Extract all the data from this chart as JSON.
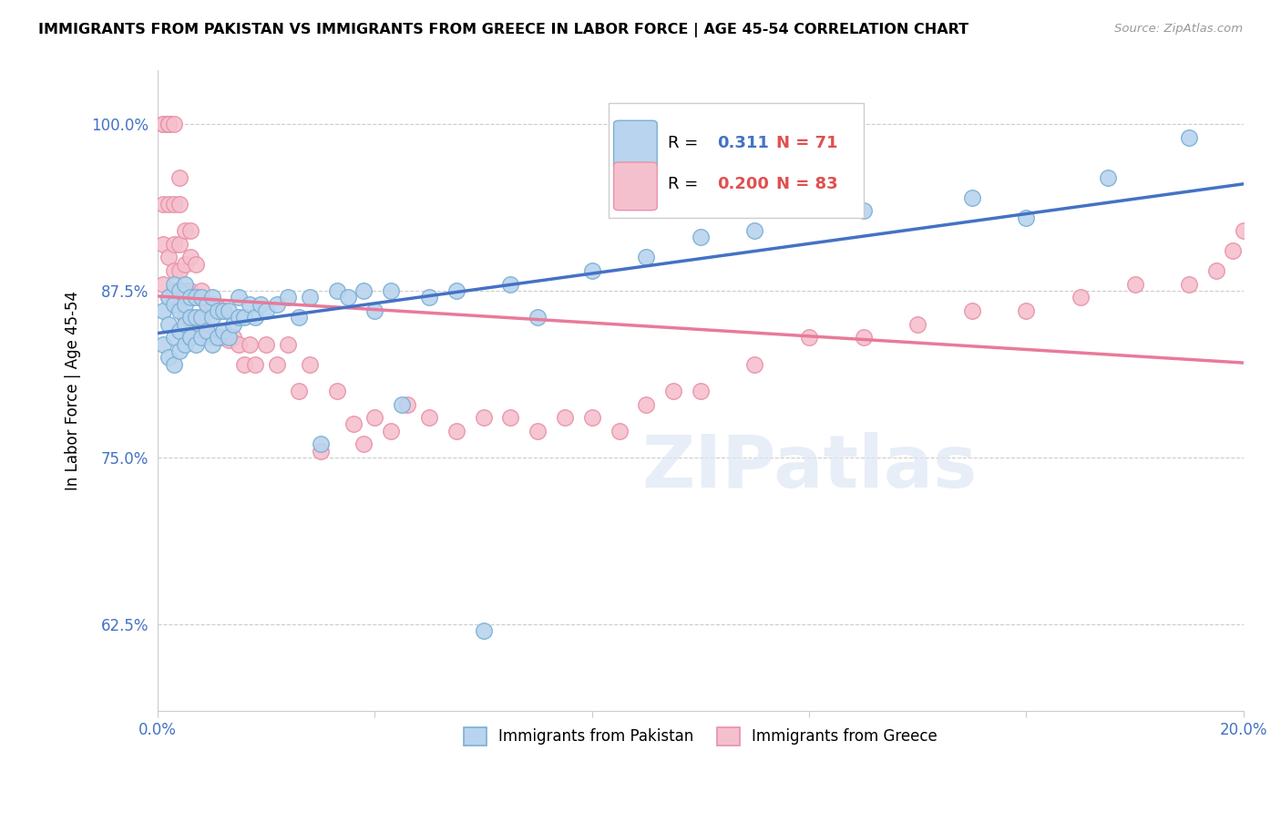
{
  "title": "IMMIGRANTS FROM PAKISTAN VS IMMIGRANTS FROM GREECE IN LABOR FORCE | AGE 45-54 CORRELATION CHART",
  "source": "Source: ZipAtlas.com",
  "ylabel": "In Labor Force | Age 45-54",
  "xlim": [
    0.0,
    0.2
  ],
  "ylim": [
    0.56,
    1.04
  ],
  "xticks": [
    0.0,
    0.04,
    0.08,
    0.12,
    0.16,
    0.2
  ],
  "xtick_labels": [
    "0.0%",
    "",
    "",
    "",
    "",
    "20.0%"
  ],
  "ytick_labels": [
    "62.5%",
    "75.0%",
    "87.5%",
    "100.0%"
  ],
  "yticks": [
    0.625,
    0.75,
    0.875,
    1.0
  ],
  "R_pakistan": 0.311,
  "N_pakistan": 71,
  "R_greece": 0.2,
  "N_greece": 83,
  "pakistan_color": "#b8d4ee",
  "pakistan_edge": "#7aafd4",
  "greece_color": "#f5c0ce",
  "greece_edge": "#e891a8",
  "pakistan_line_color": "#4472c4",
  "greece_line_color": "#e87a9a",
  "watermark": "ZIPatlas",
  "pakistan_x": [
    0.001,
    0.001,
    0.002,
    0.002,
    0.002,
    0.003,
    0.003,
    0.003,
    0.003,
    0.004,
    0.004,
    0.004,
    0.004,
    0.005,
    0.005,
    0.005,
    0.005,
    0.006,
    0.006,
    0.006,
    0.006,
    0.007,
    0.007,
    0.007,
    0.008,
    0.008,
    0.008,
    0.009,
    0.009,
    0.01,
    0.01,
    0.01,
    0.011,
    0.011,
    0.012,
    0.012,
    0.013,
    0.013,
    0.014,
    0.015,
    0.015,
    0.016,
    0.017,
    0.018,
    0.019,
    0.02,
    0.022,
    0.024,
    0.026,
    0.028,
    0.03,
    0.033,
    0.035,
    0.038,
    0.04,
    0.043,
    0.045,
    0.05,
    0.055,
    0.06,
    0.065,
    0.07,
    0.08,
    0.09,
    0.1,
    0.11,
    0.13,
    0.15,
    0.16,
    0.175,
    0.19
  ],
  "pakistan_y": [
    0.835,
    0.86,
    0.825,
    0.85,
    0.87,
    0.82,
    0.84,
    0.865,
    0.88,
    0.83,
    0.845,
    0.86,
    0.875,
    0.835,
    0.85,
    0.865,
    0.88,
    0.84,
    0.855,
    0.87,
    0.84,
    0.835,
    0.855,
    0.87,
    0.84,
    0.855,
    0.87,
    0.845,
    0.865,
    0.835,
    0.855,
    0.87,
    0.84,
    0.86,
    0.845,
    0.86,
    0.84,
    0.86,
    0.85,
    0.855,
    0.87,
    0.855,
    0.865,
    0.855,
    0.865,
    0.86,
    0.865,
    0.87,
    0.855,
    0.87,
    0.76,
    0.875,
    0.87,
    0.875,
    0.86,
    0.875,
    0.79,
    0.87,
    0.875,
    0.62,
    0.88,
    0.855,
    0.89,
    0.9,
    0.915,
    0.92,
    0.935,
    0.945,
    0.93,
    0.96,
    0.99
  ],
  "greece_x": [
    0.001,
    0.001,
    0.001,
    0.001,
    0.001,
    0.002,
    0.002,
    0.002,
    0.002,
    0.002,
    0.002,
    0.003,
    0.003,
    0.003,
    0.003,
    0.003,
    0.004,
    0.004,
    0.004,
    0.004,
    0.004,
    0.005,
    0.005,
    0.005,
    0.005,
    0.006,
    0.006,
    0.006,
    0.006,
    0.007,
    0.007,
    0.007,
    0.008,
    0.008,
    0.009,
    0.009,
    0.01,
    0.01,
    0.011,
    0.011,
    0.012,
    0.012,
    0.013,
    0.014,
    0.015,
    0.016,
    0.017,
    0.018,
    0.02,
    0.022,
    0.024,
    0.026,
    0.028,
    0.03,
    0.033,
    0.036,
    0.038,
    0.04,
    0.043,
    0.046,
    0.05,
    0.055,
    0.06,
    0.065,
    0.07,
    0.075,
    0.08,
    0.085,
    0.09,
    0.095,
    0.1,
    0.11,
    0.12,
    0.13,
    0.14,
    0.15,
    0.16,
    0.17,
    0.18,
    0.19,
    0.195,
    0.198,
    0.2
  ],
  "greece_y": [
    0.88,
    0.91,
    0.94,
    1.0,
    1.0,
    0.87,
    0.9,
    0.94,
    1.0,
    1.0,
    1.0,
    0.875,
    0.89,
    0.91,
    0.94,
    1.0,
    0.87,
    0.89,
    0.91,
    0.94,
    0.96,
    0.855,
    0.875,
    0.895,
    0.92,
    0.855,
    0.875,
    0.9,
    0.92,
    0.85,
    0.87,
    0.895,
    0.855,
    0.875,
    0.845,
    0.865,
    0.84,
    0.865,
    0.84,
    0.862,
    0.84,
    0.86,
    0.838,
    0.84,
    0.835,
    0.82,
    0.835,
    0.82,
    0.835,
    0.82,
    0.835,
    0.8,
    0.82,
    0.755,
    0.8,
    0.775,
    0.76,
    0.78,
    0.77,
    0.79,
    0.78,
    0.77,
    0.78,
    0.78,
    0.77,
    0.78,
    0.78,
    0.77,
    0.79,
    0.8,
    0.8,
    0.82,
    0.84,
    0.84,
    0.85,
    0.86,
    0.86,
    0.87,
    0.88,
    0.88,
    0.89,
    0.905,
    0.92
  ]
}
